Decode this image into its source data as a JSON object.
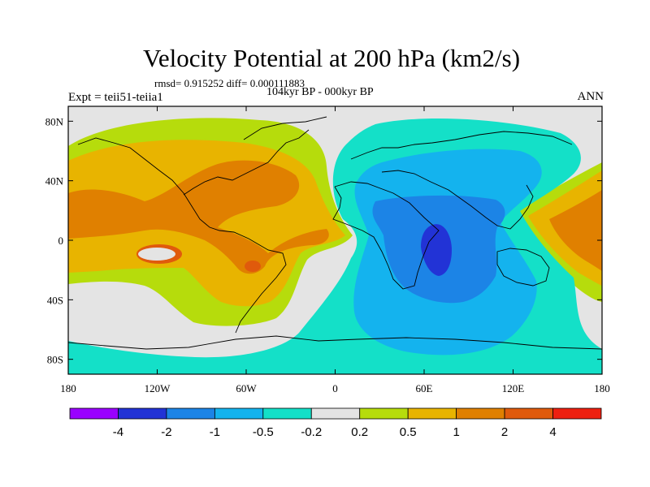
{
  "title": "Velocity Potential at 200 hPa (km2/s)",
  "rmsd_text": "rmsd= 0.915252  diff= 0.000111883",
  "subtitle": "104kyr BP - 000kyr BP",
  "left_string": "Expt = teii51-teiia1",
  "right_string": "ANN",
  "lat_ticks": [
    {
      "label": "80N",
      "value": 80
    },
    {
      "label": "40N",
      "value": 40
    },
    {
      "label": "0",
      "value": 0
    },
    {
      "label": "40S",
      "value": -40
    },
    {
      "label": "80S",
      "value": -80
    }
  ],
  "lon_ticks": [
    {
      "label": "180",
      "value": -180
    },
    {
      "label": "120W",
      "value": -120
    },
    {
      "label": "60W",
      "value": -60
    },
    {
      "label": "0",
      "value": 0
    },
    {
      "label": "60E",
      "value": 60
    },
    {
      "label": "120E",
      "value": 120
    },
    {
      "label": "180",
      "value": 180
    }
  ],
  "colorbar": {
    "colors": [
      "#9a00ff",
      "#2233d6",
      "#1c84e6",
      "#14b3ee",
      "#14e0c8",
      "#e4e4e4",
      "#b6dc0c",
      "#e8b400",
      "#e08000",
      "#e05a0c",
      "#ee2010"
    ],
    "labels": [
      "-4",
      "-2",
      "-1",
      "-0.5",
      "-0.2",
      "0.2",
      "0.5",
      "1",
      "2",
      "4"
    ]
  },
  "chart_data": {
    "type": "heatmap",
    "projection": "cylindrical equidistant",
    "field": "velocity potential at 200 hPa",
    "units": "km2/s",
    "xlim": [
      -180,
      180
    ],
    "ylim": [
      -90,
      90
    ],
    "contour_levels": [
      -4,
      -2,
      -1,
      -0.5,
      -0.2,
      0.2,
      0.5,
      1,
      2,
      4
    ],
    "regions": [
      {
        "sign": "positive",
        "lon_range": [
          -180,
          20
        ],
        "lat_range": [
          -40,
          75
        ],
        "max_level": 2
      },
      {
        "sign": "positive",
        "lon_range": [
          130,
          180
        ],
        "lat_range": [
          -30,
          40
        ],
        "max_level": 2
      },
      {
        "sign": "negative",
        "lon_range": [
          10,
          155
        ],
        "lat_range": [
          -90,
          80
        ],
        "min_level": -2,
        "minimum_center": [
          68,
          -5
        ]
      }
    ]
  }
}
